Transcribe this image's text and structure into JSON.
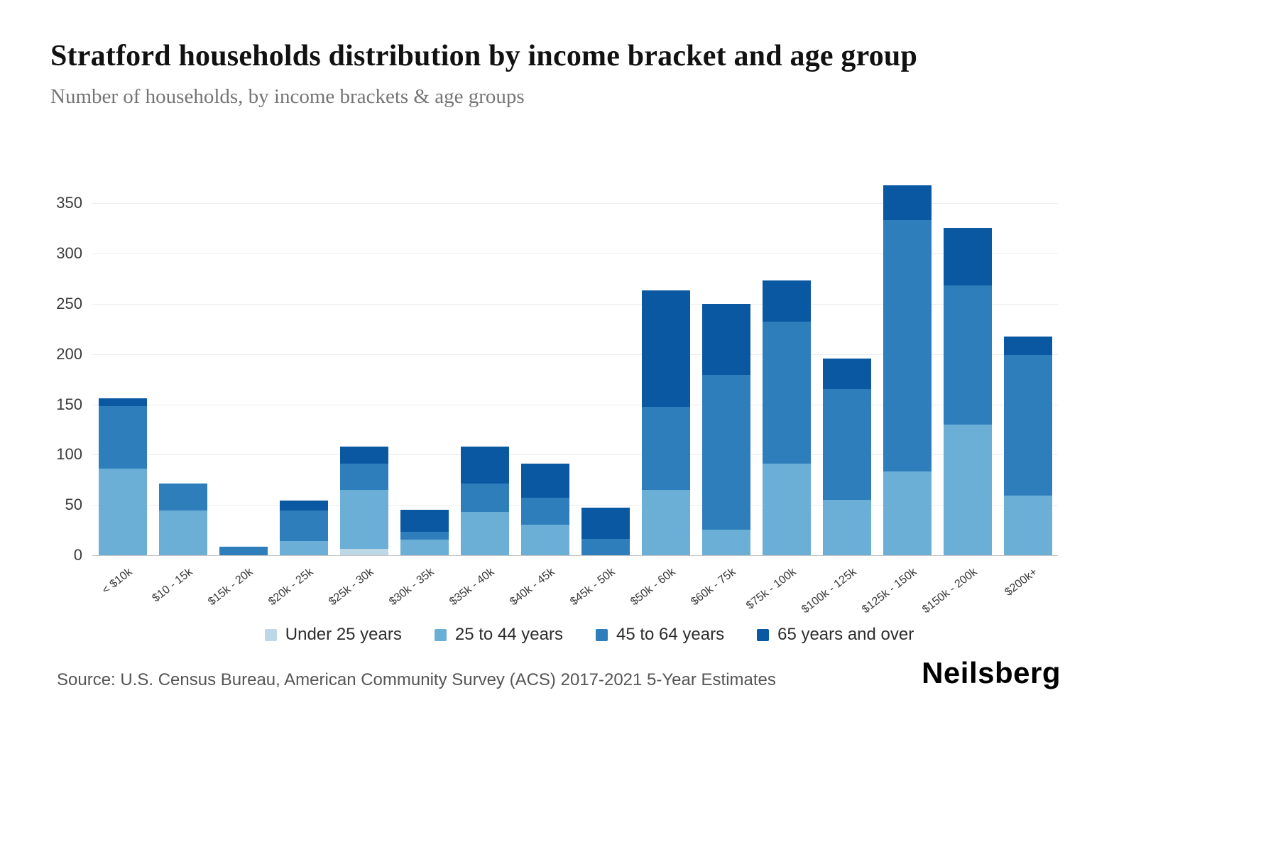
{
  "header": {
    "title": "Stratford households distribution by income bracket and age group",
    "subtitle": "Number of households, by income brackets & age groups"
  },
  "footer": {
    "source": "Source: U.S. Census Bureau, American Community Survey (ACS) 2017-2021 5-Year Estimates",
    "brand": "Neilsberg"
  },
  "chart_data": {
    "type": "bar",
    "stacked": true,
    "title": "Stratford households distribution by income bracket and age group",
    "xlabel": "",
    "ylabel": "Number of households",
    "grid": true,
    "legend_position": "bottom",
    "yticks": [
      0,
      50,
      100,
      150,
      200,
      250,
      300,
      350
    ],
    "ylim": [
      0,
      375
    ],
    "categories": [
      "< $10k",
      "$10 - 15k",
      "$15k - 20k",
      "$20k - 25k",
      "$25k - 30k",
      "$30k - 35k",
      "$35k - 40k",
      "$40k - 45k",
      "$45k - 50k",
      "$50k - 60k",
      "$60k - 75k",
      "$75k - 100k",
      "$100k - 125k",
      "$125k - 150k",
      "$150k - 200k",
      "$200k+"
    ],
    "series": [
      {
        "name": "Under 25 years",
        "color": "#bdd7e7",
        "values": [
          0,
          0,
          0,
          0,
          7,
          0,
          0,
          0,
          0,
          0,
          0,
          0,
          0,
          0,
          0,
          0
        ]
      },
      {
        "name": "25 to 44 years",
        "color": "#6baed6",
        "values": [
          87,
          45,
          0,
          15,
          59,
          16,
          44,
          31,
          0,
          66,
          26,
          92,
          56,
          84,
          131,
          60
        ]
      },
      {
        "name": "45 to 64 years",
        "color": "#2e7ebc",
        "values": [
          62,
          27,
          9,
          30,
          26,
          8,
          28,
          27,
          17,
          82,
          154,
          141,
          110,
          250,
          138,
          140
        ]
      },
      {
        "name": "65 years and over",
        "color": "#0a58a2",
        "values": [
          8,
          0,
          0,
          10,
          17,
          22,
          37,
          34,
          31,
          116,
          71,
          41,
          30,
          35,
          57,
          18
        ]
      }
    ]
  }
}
